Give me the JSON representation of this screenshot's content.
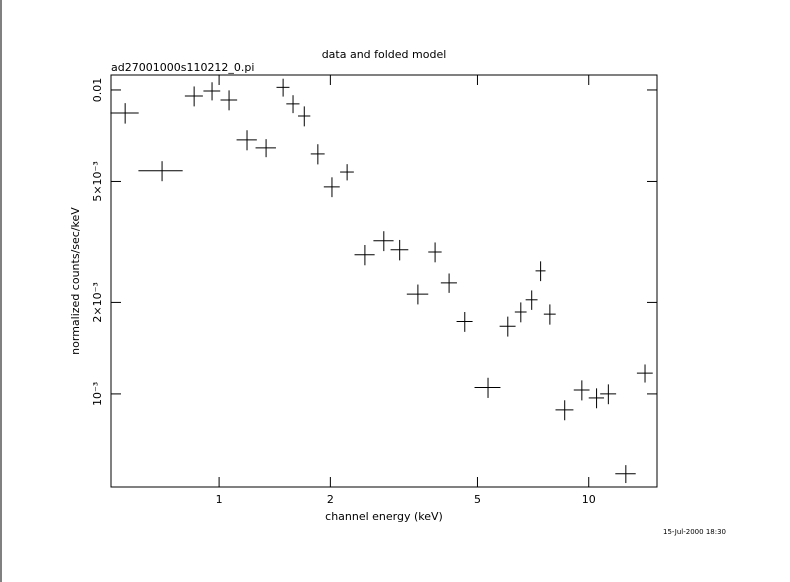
{
  "chart_data": {
    "type": "errorbar",
    "title": "data and folded model",
    "subtitle": "ad27001000s110212_0.pi",
    "xlabel": "channel energy (keV)",
    "ylabel": "normalized counts/sec/keV",
    "footnote": "15-Jul-2000 18:30",
    "xscale": "log",
    "yscale": "log",
    "xlim": [
      0.51,
      15.3
    ],
    "ylim": [
      0.000494,
      0.0112
    ],
    "xticks": [
      1,
      2,
      5,
      10
    ],
    "yticks": [
      {
        "value": 0.001,
        "label": "10⁻³"
      },
      {
        "value": 0.002,
        "label": "2×10⁻³"
      },
      {
        "value": 0.005,
        "label": "5×10⁻³"
      },
      0.01
    ],
    "color": "#000000",
    "x": [
      0.557,
      0.701,
      0.856,
      0.957,
      1.064,
      1.19,
      1.34,
      1.49,
      1.585,
      1.7,
      1.85,
      2.02,
      2.22,
      2.48,
      2.79,
      3.08,
      3.45,
      3.84,
      4.19,
      4.62,
      5.34,
      6.04,
      6.55,
      7.01,
      7.41,
      7.85,
      8.61,
      9.58,
      10.5,
      11.3,
      12.6,
      14.2
    ],
    "xerr": [
      0.049,
      0.096,
      0.048,
      0.05,
      0.055,
      0.075,
      0.085,
      0.06,
      0.065,
      0.065,
      0.08,
      0.1,
      0.095,
      0.155,
      0.175,
      0.17,
      0.23,
      0.16,
      0.21,
      0.23,
      0.43,
      0.3,
      0.24,
      0.26,
      0.23,
      0.29,
      0.48,
      0.47,
      0.5,
      0.56,
      0.8,
      0.7
    ],
    "values": [
      0.0084,
      0.00542,
      0.00955,
      0.00992,
      0.00927,
      0.00685,
      0.00645,
      0.0102,
      0.009,
      0.00821,
      0.00616,
      0.0048,
      0.00537,
      0.00287,
      0.00319,
      0.00298,
      0.00213,
      0.00293,
      0.00232,
      0.00173,
      0.00105,
      0.00167,
      0.00186,
      0.00204,
      0.00254,
      0.00183,
      0.000886,
      0.00103,
      0.00097,
      0.001,
      0.000546,
      0.00117
    ],
    "yerr": [
      0.00065,
      0.00041,
      0.00072,
      0.00068,
      0.0007,
      0.00052,
      0.00044,
      0.00069,
      0.00061,
      0.00062,
      0.00047,
      0.00036,
      0.00033,
      0.00022,
      0.00024,
      0.00023,
      0.00016,
      0.00022,
      0.00017,
      0.00013,
      8e-05,
      0.000126,
      0.00014,
      0.00015,
      0.00019,
      0.00014,
      6.7e-05,
      7.8e-05,
      7.3e-05,
      7.5e-05,
      3.7e-05,
      8e-05
    ]
  }
}
